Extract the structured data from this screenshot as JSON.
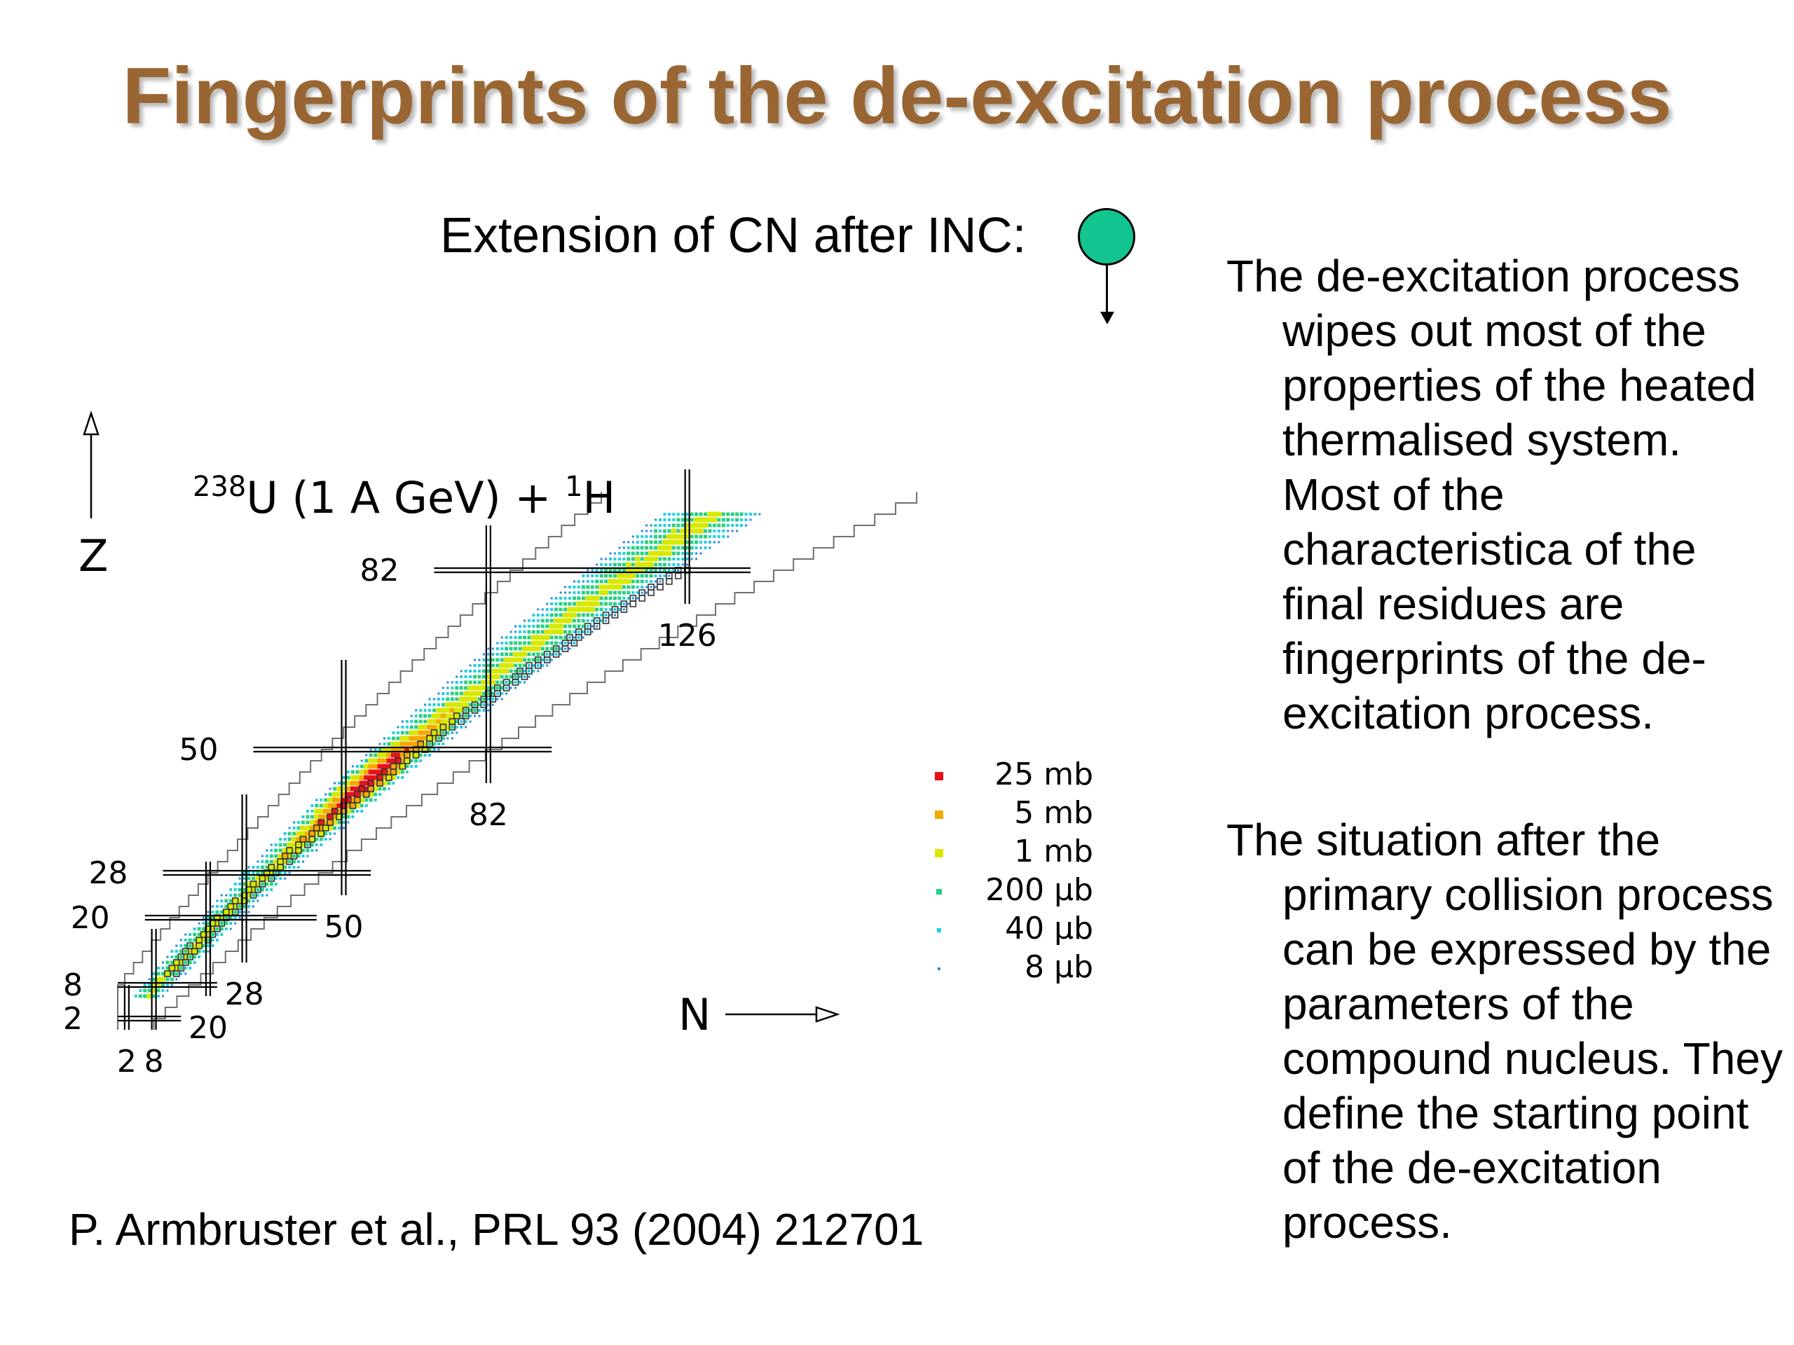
{
  "title": "Fingerprints of the de-excitation process",
  "extension_label": "Extension of CN after INC:",
  "reaction": {
    "sup1": "238",
    "main": "U (1 A GeV) + ",
    "sup2": "1",
    "end": "H"
  },
  "axis": {
    "z_label": "Z",
    "n_label": "N"
  },
  "magic": {
    "z_labels": [
      "2",
      "8",
      "20",
      "28",
      "50",
      "82"
    ],
    "n_labels": [
      "2",
      "8",
      "20",
      "28",
      "50",
      "82",
      "126"
    ]
  },
  "legend": [
    {
      "label": "25 mb",
      "color": "#e8101a"
    },
    {
      "label": "5 mb",
      "color": "#f5a800"
    },
    {
      "label": "1 mb",
      "color": "#d8e800"
    },
    {
      "label": "200 µb",
      "color": "#28d080"
    },
    {
      "label": "40 µb",
      "color": "#20d0e0"
    },
    {
      "label": "8 µb",
      "color": "#2a8ae0"
    }
  ],
  "paragraphs": [
    "The de-excitation process wipes out most of the properties of the heated thermalised system. Most of the characteristica of the final residues are fingerprints of the de-excitation process.",
    "The situation after the primary collision process can be expressed by the parameters of the compound nucleus. They define the starting point of the de-excitation process."
  ],
  "citation": "P. Armbruster et al., PRL 93 (2004) 212701",
  "colors": {
    "title": "#996633",
    "cn_circle": "#12c48f"
  }
}
